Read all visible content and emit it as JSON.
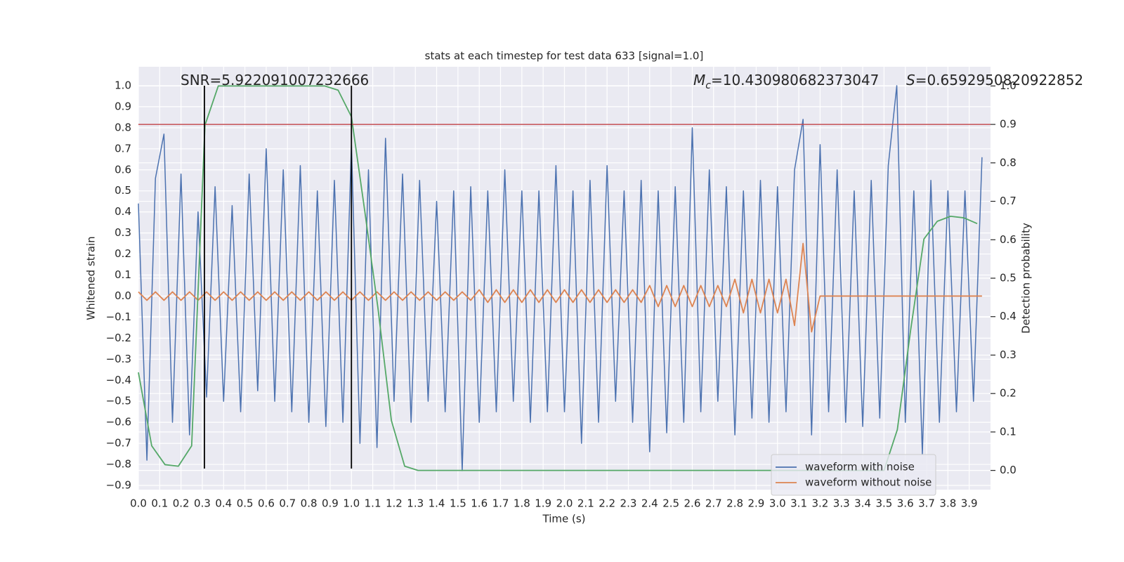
{
  "chart_data": {
    "type": "line",
    "title": "stats at each timestep for test data 633 [signal=1.0]",
    "xlabel": "Time (s)",
    "ylabel": "Whitened strain",
    "y2label": "Detection probability",
    "annotations": [
      {
        "text": "SNR=5.922091007232666"
      },
      {
        "symbol": "M",
        "subscript": "c",
        "text": "=10.430980682373047"
      },
      {
        "symbol": "S",
        "text": "=0.6592950820922852"
      }
    ],
    "xlim": [
      0,
      4.0
    ],
    "ylim": [
      -0.92,
      1.09
    ],
    "y2lim": [
      -0.05,
      1.05
    ],
    "xticks": [
      {
        "value": 0,
        "label": "0.0"
      },
      0.1,
      0.2,
      0.3,
      0.4,
      0.5,
      0.6,
      0.7,
      0.8,
      0.9,
      {
        "value": 1,
        "label": "1.0"
      },
      1.1,
      1.2,
      1.3,
      1.4,
      1.5,
      1.6,
      1.7,
      1.8,
      1.9,
      {
        "value": 2,
        "label": "2.0"
      },
      2.1,
      2.2,
      2.3,
      2.4,
      2.5,
      2.6,
      2.7,
      2.8,
      2.9,
      {
        "value": 3,
        "label": "3.0"
      },
      3.1,
      3.2,
      3.3,
      3.4,
      3.5,
      3.6,
      3.7,
      3.8,
      3.9
    ],
    "yticks": [
      {
        "value": -0.9,
        "label": "−0.9"
      },
      {
        "value": -0.8,
        "label": "−0.8"
      },
      {
        "value": -0.7,
        "label": "−0.7"
      },
      {
        "value": -0.6,
        "label": "−0.6"
      },
      {
        "value": -0.5,
        "label": "−0.5"
      },
      {
        "value": -0.4,
        "label": "−0.4"
      },
      {
        "value": -0.3,
        "label": "−0.3"
      },
      {
        "value": -0.2,
        "label": "−0.2"
      },
      {
        "value": -0.1,
        "label": "−0.1"
      },
      {
        "value": 0,
        "label": "0.0"
      },
      0.1,
      0.2,
      0.3,
      0.4,
      0.5,
      0.6,
      0.7,
      0.8,
      0.9,
      {
        "value": 1,
        "label": "1.0"
      }
    ],
    "y2ticks": [
      {
        "value": 0,
        "label": "0.0"
      },
      0.1,
      0.2,
      0.3,
      0.4,
      0.5,
      0.6,
      0.7,
      0.8,
      0.9,
      {
        "value": 1,
        "label": "1.0"
      }
    ],
    "grid": true,
    "legend": "lower right",
    "x": [
      0,
      0.04,
      0.08,
      0.12,
      0.16,
      0.2,
      0.24,
      0.28,
      0.32,
      0.36,
      0.4,
      0.44,
      0.48,
      0.52,
      0.56,
      0.6,
      0.64,
      0.68,
      0.72,
      0.76,
      0.8,
      0.84,
      0.88,
      0.92,
      0.96,
      1.0,
      1.04,
      1.08,
      1.12,
      1.16,
      1.2,
      1.24,
      1.28,
      1.32,
      1.36,
      1.4,
      1.44,
      1.48,
      1.52,
      1.56,
      1.6,
      1.64,
      1.68,
      1.72,
      1.76,
      1.8,
      1.84,
      1.88,
      1.92,
      1.96,
      2.0,
      2.04,
      2.08,
      2.12,
      2.16,
      2.2,
      2.24,
      2.28,
      2.32,
      2.36,
      2.4,
      2.44,
      2.48,
      2.52,
      2.56,
      2.6,
      2.64,
      2.68,
      2.72,
      2.76,
      2.8,
      2.84,
      2.88,
      2.92,
      2.96,
      3.0,
      3.04,
      3.08,
      3.12,
      3.16,
      3.2,
      3.24,
      3.28,
      3.32,
      3.36,
      3.4,
      3.44,
      3.48,
      3.52,
      3.56,
      3.6,
      3.64,
      3.68,
      3.72,
      3.76,
      3.8,
      3.84,
      3.88,
      3.92,
      3.96
    ],
    "series": [
      {
        "name": "waveform with noise",
        "color": "#4c72b0",
        "values": [
          0.44,
          -0.78,
          0.56,
          0.77,
          -0.6,
          0.58,
          -0.66,
          0.4,
          -0.48,
          0.52,
          -0.5,
          0.43,
          -0.55,
          0.58,
          -0.45,
          0.7,
          -0.5,
          0.6,
          -0.55,
          0.62,
          -0.6,
          0.5,
          -0.62,
          0.55,
          -0.6,
          0.72,
          -0.7,
          0.6,
          -0.72,
          0.75,
          -0.5,
          0.58,
          -0.6,
          0.55,
          -0.5,
          0.45,
          -0.55,
          0.5,
          -0.83,
          0.52,
          -0.6,
          0.5,
          -0.55,
          0.6,
          -0.5,
          0.5,
          -0.6,
          0.5,
          -0.55,
          0.62,
          -0.55,
          0.5,
          -0.7,
          0.55,
          -0.6,
          0.62,
          -0.5,
          0.5,
          -0.6,
          0.55,
          -0.74,
          0.5,
          -0.65,
          0.52,
          -0.6,
          0.8,
          -0.55,
          0.6,
          -0.5,
          0.52,
          -0.66,
          0.5,
          -0.58,
          0.55,
          -0.6,
          0.52,
          -0.55,
          0.6,
          0.84,
          -0.66,
          0.72,
          -0.55,
          0.6,
          -0.6,
          0.5,
          -0.62,
          0.55,
          -0.58,
          0.62,
          1.0,
          -0.6,
          0.5,
          -0.75,
          0.55,
          -0.6,
          0.5,
          -0.55,
          0.5,
          -0.5,
          0.66
        ]
      },
      {
        "name": "waveform without noise",
        "color": "#dd8452",
        "values": [
          0.02,
          -0.02,
          0.02,
          -0.02,
          0.02,
          -0.02,
          0.02,
          -0.02,
          0.02,
          -0.02,
          0.02,
          -0.02,
          0.02,
          -0.02,
          0.02,
          -0.02,
          0.02,
          -0.02,
          0.02,
          -0.02,
          0.02,
          -0.02,
          0.02,
          -0.02,
          0.02,
          -0.02,
          0.02,
          -0.02,
          0.02,
          -0.02,
          0.02,
          -0.02,
          0.02,
          -0.02,
          0.02,
          -0.02,
          0.02,
          -0.02,
          0.02,
          -0.02,
          0.03,
          -0.03,
          0.03,
          -0.03,
          0.03,
          -0.03,
          0.03,
          -0.03,
          0.03,
          -0.03,
          0.03,
          -0.03,
          0.03,
          -0.03,
          0.03,
          -0.03,
          0.03,
          -0.03,
          0.03,
          -0.03,
          0.05,
          -0.05,
          0.05,
          -0.05,
          0.05,
          -0.05,
          0.05,
          -0.05,
          0.05,
          -0.05,
          0.08,
          -0.08,
          0.08,
          -0.08,
          0.08,
          -0.08,
          0.08,
          -0.14,
          0.25,
          -0.17,
          0,
          0,
          0,
          0,
          0,
          0,
          0,
          0,
          0,
          0,
          0,
          0,
          0,
          0,
          0,
          0,
          0,
          0,
          0,
          0
        ]
      },
      {
        "color": "#55a868",
        "axis": "y2",
        "x": [
          0,
          0.0625,
          0.125,
          0.1875,
          0.25,
          0.3125,
          0.375,
          0.875,
          0.9375,
          1.0,
          1.0625,
          1.125,
          1.1875,
          1.25,
          1.3125,
          3.5,
          3.5625,
          3.625,
          3.6875,
          3.75,
          3.8125,
          3.875,
          3.9375
        ],
        "values": [
          0.255,
          0.064,
          0.015,
          0.011,
          0.064,
          0.898,
          1.0,
          1.0,
          0.989,
          0.92,
          0.675,
          0.42,
          0.13,
          0.011,
          0,
          0,
          0.106,
          0.365,
          0.602,
          0.648,
          0.661,
          0.657,
          0.642
        ]
      }
    ],
    "hline": {
      "value": 0.9,
      "axis": "y2",
      "color": "#c44e52"
    },
    "vlines": {
      "x": [
        0.31,
        1.0
      ],
      "ymin": -0.82,
      "ymax": 1.0,
      "color": "#000000"
    }
  }
}
